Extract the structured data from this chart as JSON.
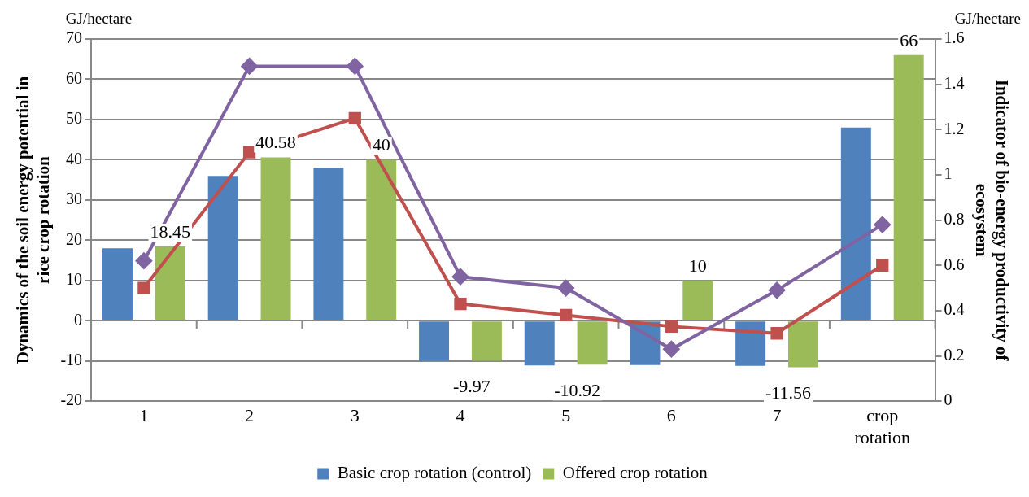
{
  "chart_data": {
    "type": "bar",
    "categories": [
      "1",
      "2",
      "3",
      "4",
      "5",
      "6",
      "7",
      "crop rotation"
    ],
    "ylabel": "Dynamics of the soil energy potential in rice crop rotation",
    "y2label": "Indicator of bio-energy productivity of ecosystem",
    "annotations": [
      "GJ/hectare",
      "GJ/hectare"
    ],
    "series": [
      {
        "name": "Basic crop rotation (control)",
        "color": "#4f81bd",
        "values": [
          18,
          36,
          38,
          -10,
          -11.1,
          -11,
          -11.2,
          48
        ]
      },
      {
        "name": "Offered crop rotation",
        "color": "#9bbb59",
        "values": [
          18.45,
          40.58,
          40,
          -9.97,
          -10.92,
          10,
          -11.56,
          66
        ],
        "value_labels": [
          "18.45",
          "40.58",
          "40",
          "-9.97",
          "-10.92",
          "10",
          "-11.56",
          "66"
        ]
      },
      {
        "type": "line",
        "axis": "y2",
        "color": "#8064a2",
        "marker": "diamond",
        "values": [
          0.62,
          1.48,
          1.48,
          0.55,
          0.5,
          0.23,
          0.49,
          0.78
        ]
      },
      {
        "type": "line",
        "axis": "y2",
        "color": "#c0504d",
        "marker": "square",
        "values": [
          0.5,
          1.1,
          1.25,
          0.43,
          0.38,
          0.33,
          0.3,
          0.6
        ]
      }
    ],
    "ylim": [
      -20,
      70
    ],
    "yticks": [
      -20,
      -10,
      0,
      10,
      20,
      30,
      40,
      50,
      60,
      70
    ],
    "y2lim": [
      0,
      1.6
    ],
    "y2ticks": [
      0,
      0.2,
      0.4,
      0.6,
      0.8,
      1,
      1.2,
      1.4,
      1.6
    ],
    "grid": "y",
    "legend": "bottom"
  }
}
